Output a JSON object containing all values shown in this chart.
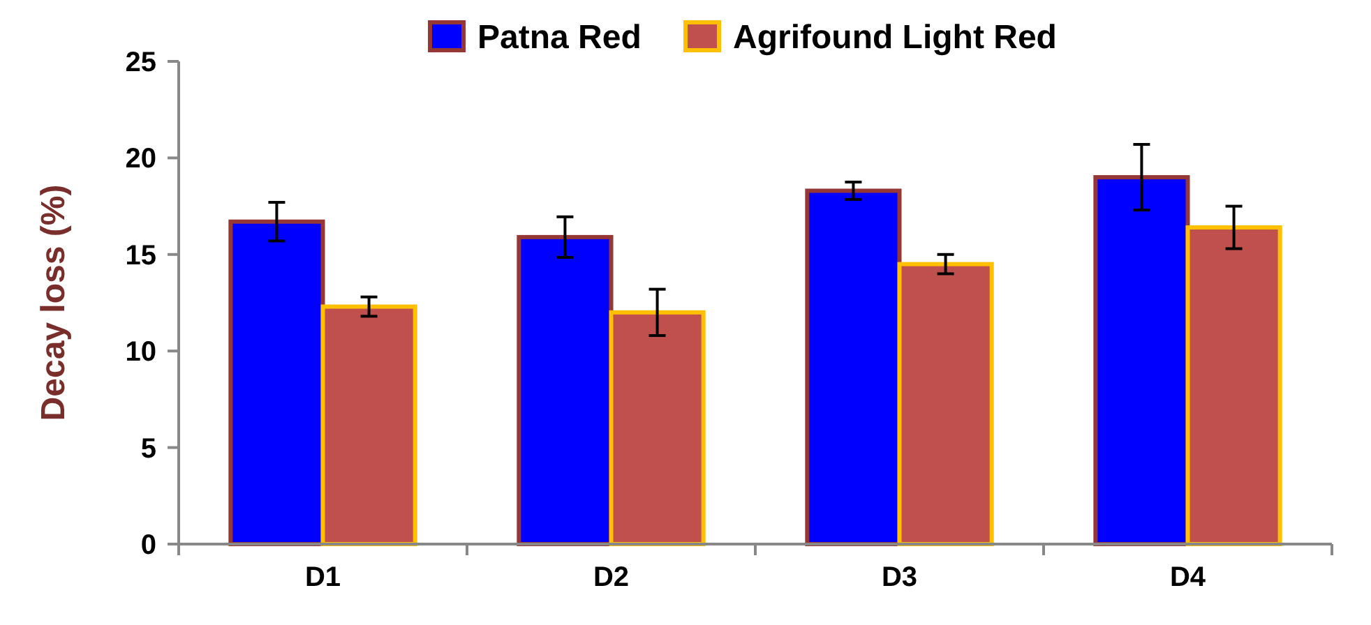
{
  "chart_data": {
    "type": "bar",
    "ylabel": "Decay loss (%)",
    "categories": [
      "D1",
      "D2",
      "D3",
      "D4"
    ],
    "series": [
      {
        "name": "Patna Red",
        "color": "#0000ff",
        "values": [
          16.7,
          15.9,
          18.3,
          19.0
        ],
        "errors": [
          1.0,
          1.05,
          0.45,
          1.7
        ]
      },
      {
        "name": "Agrifound Light Red",
        "color": "#c0504d",
        "values": [
          12.3,
          12.0,
          14.5,
          16.4
        ],
        "errors": [
          0.5,
          1.2,
          0.5,
          1.1
        ]
      }
    ],
    "ylim": [
      0,
      25
    ],
    "yticks": [
      0,
      5,
      10,
      15,
      20,
      25
    ],
    "grid": false,
    "legend": "top"
  }
}
